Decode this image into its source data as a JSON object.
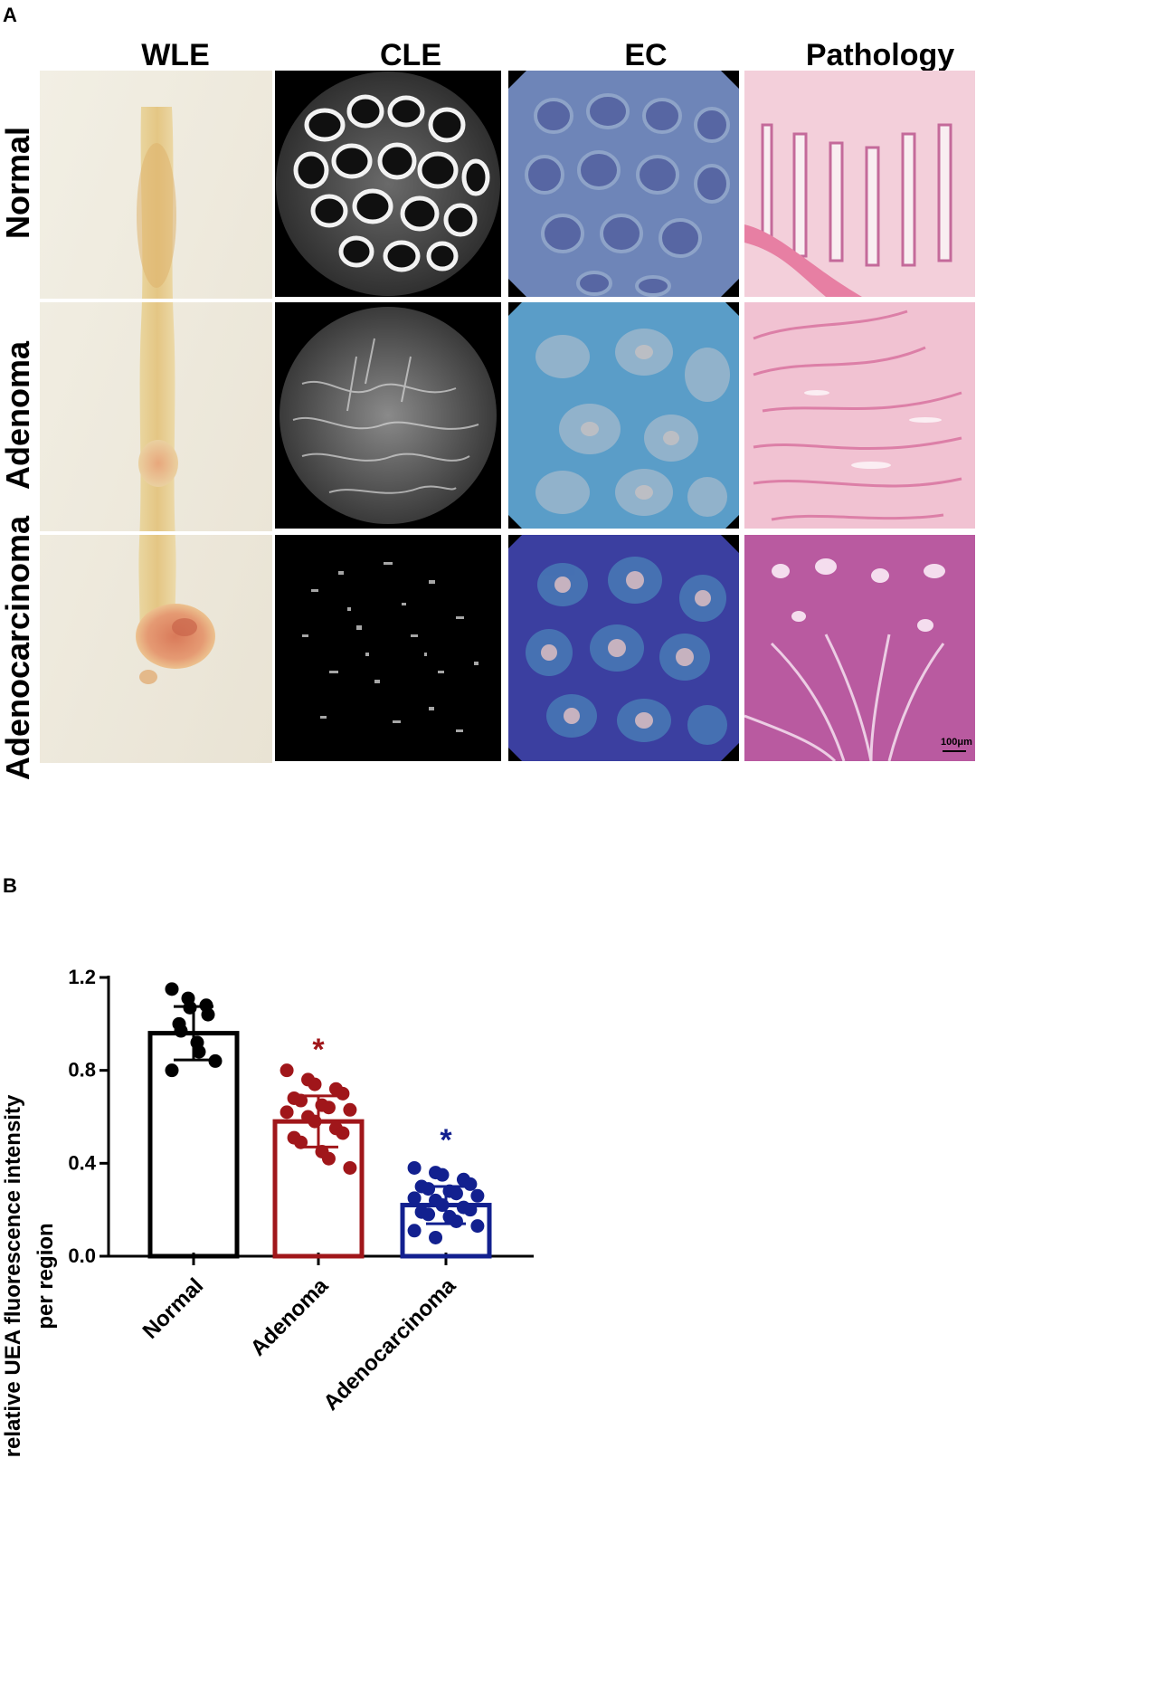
{
  "panel_a": {
    "label": "A",
    "columns": [
      "WLE",
      "CLE",
      "EC",
      "Pathology"
    ],
    "rows": [
      "Normal",
      "Adenoma",
      "Adenocarcinoma"
    ],
    "scale_bar": "100μm"
  },
  "panel_b": {
    "label": "B"
  },
  "chart_data": {
    "type": "bar",
    "categories": [
      "Normal",
      "Adenoma",
      "Adenocarcinoma"
    ],
    "values": [
      0.96,
      0.58,
      0.22
    ],
    "error": [
      0.115,
      0.11,
      0.08
    ],
    "points": [
      [
        1.15,
        1.11,
        1.07,
        1.08,
        1.04,
        1.0,
        0.97,
        0.92,
        0.88,
        0.84,
        0.8
      ],
      [
        0.8,
        0.76,
        0.74,
        0.72,
        0.7,
        0.68,
        0.67,
        0.65,
        0.64,
        0.63,
        0.62,
        0.6,
        0.58,
        0.55,
        0.53,
        0.51,
        0.49,
        0.45,
        0.42,
        0.38
      ],
      [
        0.38,
        0.36,
        0.35,
        0.33,
        0.31,
        0.3,
        0.29,
        0.28,
        0.27,
        0.26,
        0.25,
        0.24,
        0.22,
        0.21,
        0.2,
        0.19,
        0.18,
        0.17,
        0.15,
        0.13,
        0.11,
        0.08
      ]
    ],
    "colors": [
      "#000000",
      "#a0161a",
      "#12208f"
    ],
    "significance": [
      "",
      "*",
      "*"
    ],
    "ylabel_lines": [
      "relative UEA fluorescence intensity",
      "per region"
    ],
    "ylim": [
      0.0,
      1.2
    ],
    "yticks": [
      "0.0",
      "0.4",
      "0.8",
      "1.2"
    ],
    "grid": false
  }
}
